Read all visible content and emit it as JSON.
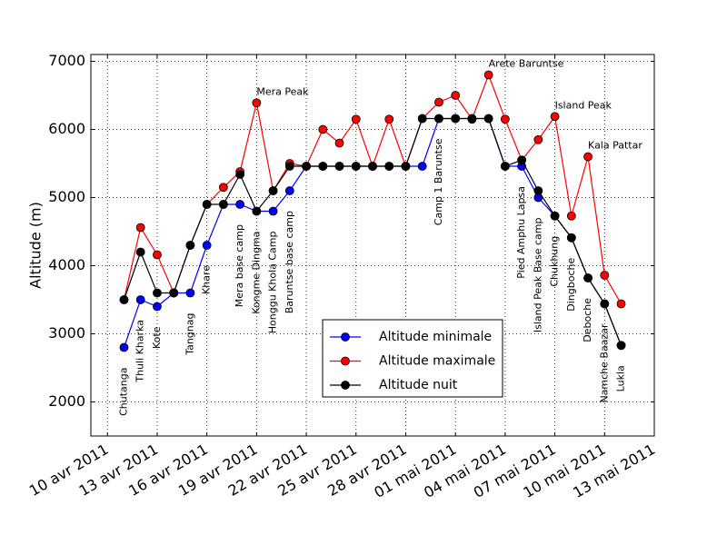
{
  "chart_data": {
    "type": "line",
    "ylabel": "Altitude (m)",
    "x": [
      "2011-04-11",
      "2011-04-12",
      "2011-04-13",
      "2011-04-14",
      "2011-04-15",
      "2011-04-16",
      "2011-04-17",
      "2011-04-18",
      "2011-04-19",
      "2011-04-20",
      "2011-04-21",
      "2011-04-22",
      "2011-04-23",
      "2011-04-24",
      "2011-04-25",
      "2011-04-26",
      "2011-04-27",
      "2011-04-28",
      "2011-04-29",
      "2011-04-30",
      "2011-05-01",
      "2011-05-02",
      "2011-05-03",
      "2011-05-04",
      "2011-05-05",
      "2011-05-06",
      "2011-05-07",
      "2011-05-08",
      "2011-05-09",
      "2011-05-10",
      "2011-05-11"
    ],
    "series": [
      {
        "name": "Altitude minimale",
        "color": "#0000ff",
        "values": [
          2800,
          3500,
          3400,
          3600,
          3600,
          4300,
          4900,
          4900,
          4800,
          4800,
          5100,
          5460,
          5460,
          5460,
          5460,
          5460,
          5460,
          5460,
          5460,
          6160,
          6160,
          6160,
          6160,
          5460,
          5460,
          5000,
          4730,
          4410,
          3820,
          3440,
          2830
        ]
      },
      {
        "name": "Altitude maximale",
        "color": "#ff0000",
        "values": [
          3500,
          4560,
          4160,
          3600,
          4300,
          4900,
          5150,
          5380,
          6390,
          5100,
          5500,
          5460,
          6000,
          5800,
          6150,
          5460,
          6150,
          5460,
          6160,
          6400,
          6500,
          6150,
          6800,
          6150,
          5550,
          5850,
          6190,
          4730,
          5600,
          3860,
          3440
        ]
      },
      {
        "name": "Altitude nuit",
        "color": "#000000",
        "values": [
          3500,
          4200,
          3600,
          3600,
          4300,
          4900,
          4900,
          5340,
          4800,
          5100,
          5460,
          5460,
          5460,
          5460,
          5460,
          5460,
          5460,
          5460,
          6160,
          6160,
          6160,
          6160,
          6160,
          5460,
          5550,
          5100,
          4730,
          4410,
          3820,
          3440,
          2830
        ]
      }
    ],
    "annotations": [
      {
        "text": "Chutanga",
        "x": "2011-04-11",
        "rotation": 90
      },
      {
        "text": "Thuli Kharka",
        "x": "2011-04-12",
        "rotation": 90
      },
      {
        "text": "Kote",
        "x": "2011-04-13",
        "rotation": 90
      },
      {
        "text": "Tangnag",
        "x": "2011-04-15",
        "rotation": 90
      },
      {
        "text": "Khare",
        "x": "2011-04-16",
        "rotation": 90
      },
      {
        "text": "Mera base camp",
        "x": "2011-04-18",
        "rotation": 90
      },
      {
        "text": "Mera Peak",
        "x": "2011-04-19",
        "rotation": 0
      },
      {
        "text": "Kongme Dingma",
        "x": "2011-04-19",
        "rotation": 90
      },
      {
        "text": "Honggu Khola Camp",
        "x": "2011-04-20",
        "rotation": 90
      },
      {
        "text": "Baruntse base camp",
        "x": "2011-04-21",
        "rotation": 90
      },
      {
        "text": "Camp 1 Baruntse",
        "x": "2011-04-30",
        "rotation": 90
      },
      {
        "text": "Arete Baruntse",
        "x": "2011-05-03",
        "rotation": 0
      },
      {
        "text": "Pied Amphu Lapsa",
        "x": "2011-05-05",
        "rotation": 90
      },
      {
        "text": "Island Peak Base camp",
        "x": "2011-05-06",
        "rotation": 90
      },
      {
        "text": "Island Peak",
        "x": "2011-05-07",
        "rotation": 0
      },
      {
        "text": "Chukhung",
        "x": "2011-05-07",
        "rotation": 90
      },
      {
        "text": "Dingboche",
        "x": "2011-05-08",
        "rotation": 90
      },
      {
        "text": "Kala Pattar",
        "x": "2011-05-09",
        "rotation": 0
      },
      {
        "text": "Deboche",
        "x": "2011-05-09",
        "rotation": 90
      },
      {
        "text": "Namche Baazar",
        "x": "2011-05-10",
        "rotation": 90
      },
      {
        "text": "Lukla",
        "x": "2011-05-11",
        "rotation": 90
      }
    ],
    "xlim": [
      "2011-04-09",
      "2011-05-13"
    ],
    "xticks": [
      {
        "value": "2011-04-10",
        "label": "10 avr 2011"
      },
      {
        "value": "2011-04-13",
        "label": "13 avr 2011"
      },
      {
        "value": "2011-04-16",
        "label": "16 avr 2011"
      },
      {
        "value": "2011-04-19",
        "label": "19 avr 2011"
      },
      {
        "value": "2011-04-22",
        "label": "22 avr 2011"
      },
      {
        "value": "2011-04-25",
        "label": "25 avr 2011"
      },
      {
        "value": "2011-04-28",
        "label": "28 avr 2011"
      },
      {
        "value": "2011-05-01",
        "label": "01 mai 2011"
      },
      {
        "value": "2011-05-04",
        "label": "04 mai 2011"
      },
      {
        "value": "2011-05-07",
        "label": "07 mai 2011"
      },
      {
        "value": "2011-05-10",
        "label": "10 mai 2011"
      },
      {
        "value": "2011-05-13",
        "label": "13 mai 2011"
      }
    ],
    "ylim": [
      1500,
      7100
    ],
    "yticks": [
      2000,
      3000,
      4000,
      5000,
      6000,
      7000
    ],
    "grid": true,
    "legend": "lower center"
  }
}
